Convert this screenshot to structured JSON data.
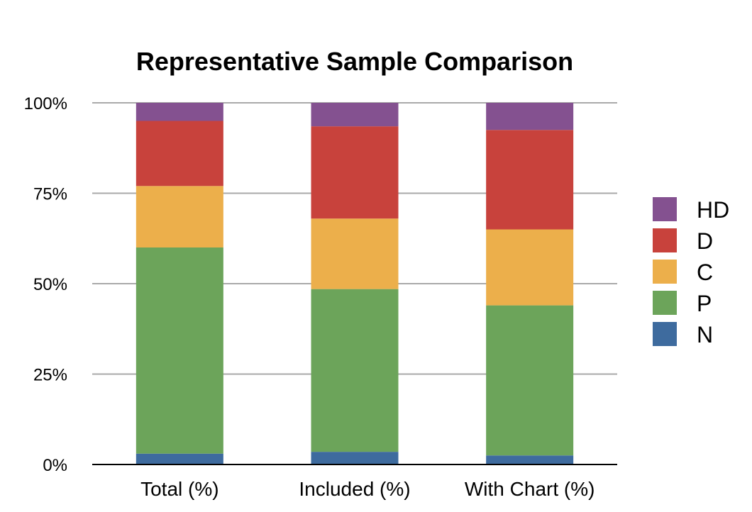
{
  "chart_data": {
    "type": "bar",
    "stacked": true,
    "title": "Representative Sample Comparison",
    "xlabel": "",
    "ylabel": "",
    "ylim": [
      0,
      100
    ],
    "yticks": [
      "0%",
      "25%",
      "50%",
      "75%",
      "100%"
    ],
    "categories": [
      "Total (%)",
      "Included (%)",
      "With Chart (%)"
    ],
    "series": [
      {
        "name": "N",
        "color": "#3e6b9e",
        "values": [
          3.0,
          3.5,
          2.5
        ]
      },
      {
        "name": "P",
        "color": "#6ca45a",
        "values": [
          57.0,
          45.0,
          41.5
        ]
      },
      {
        "name": "C",
        "color": "#ecaf4b",
        "values": [
          17.0,
          19.5,
          21.0
        ]
      },
      {
        "name": "D",
        "color": "#c8423c",
        "values": [
          18.0,
          25.5,
          27.5
        ]
      },
      {
        "name": "HD",
        "color": "#845190",
        "values": [
          5.0,
          6.5,
          7.5
        ]
      }
    ],
    "legend": "right",
    "grid": true
  }
}
